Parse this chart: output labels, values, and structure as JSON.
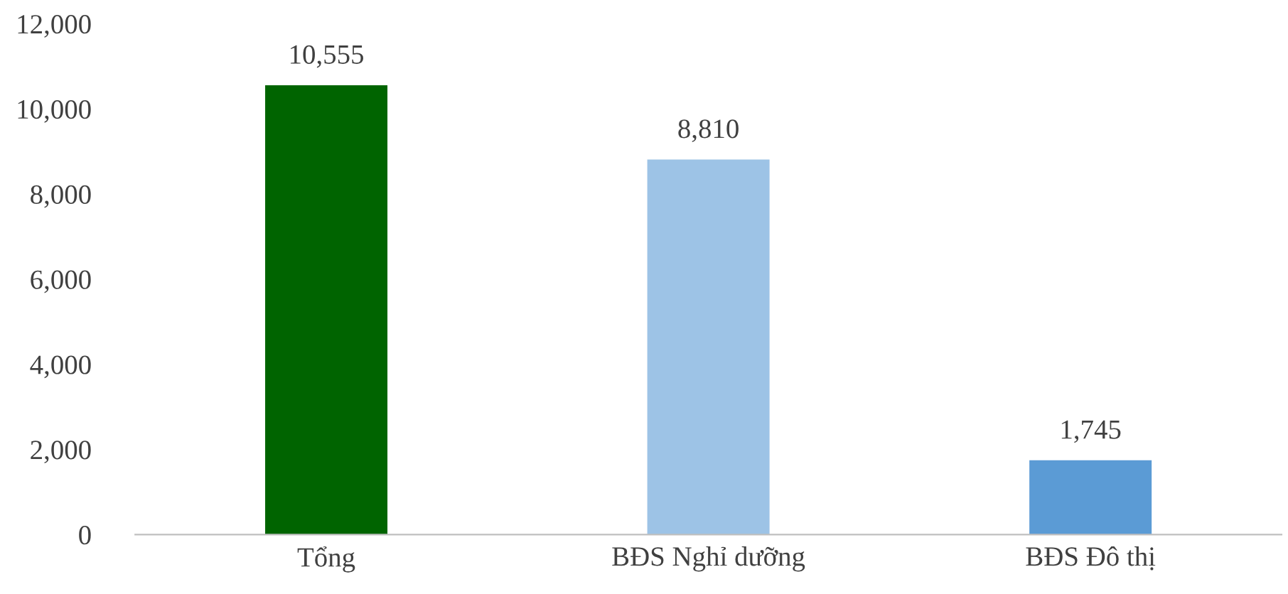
{
  "chart_data": {
    "type": "bar",
    "categories": [
      "Tổng",
      "BĐS Nghỉ dưỡng",
      "BĐS Đô thị"
    ],
    "values": [
      10555,
      8810,
      1745
    ],
    "colors": [
      "#006400",
      "#9dc3e6",
      "#5b9bd5"
    ],
    "value_labels": [
      "10,555",
      "8,810",
      "1,745"
    ],
    "ylim": [
      0,
      12000
    ],
    "yticks": [
      {
        "value": 0,
        "label": "0"
      },
      {
        "value": 2000,
        "label": "2,000"
      },
      {
        "value": 4000,
        "label": "4,000"
      },
      {
        "value": 6000,
        "label": "6,000"
      },
      {
        "value": 8000,
        "label": "8,000"
      },
      {
        "value": 10000,
        "label": "10,000"
      },
      {
        "value": 12000,
        "label": "12,000"
      }
    ],
    "grid": false
  }
}
